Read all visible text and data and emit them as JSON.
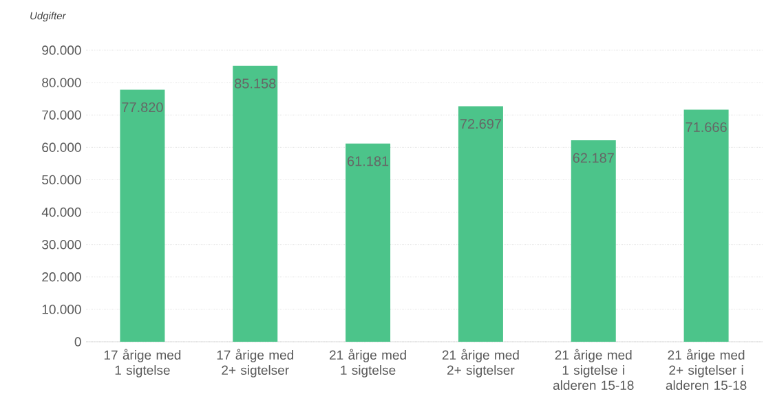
{
  "chart_data": {
    "type": "bar",
    "ylabel": "Udgifter",
    "categories": [
      "17 årige med 1 sigtelse",
      "17 årige med 2+ sigtelser",
      "21 årige med 1 sigtelse",
      "21 årige med 2+ sigtelser",
      "21 årige med 1 sigtelse i alderen 15-18",
      "21 årige med 2+ sigtelser i alderen 15-18"
    ],
    "values": [
      77820,
      85158,
      61181,
      72697,
      62187,
      71666
    ],
    "value_labels": [
      "77.820",
      "85.158",
      "61.181",
      "72.697",
      "62.187",
      "71.666"
    ],
    "color": "#4cc48a",
    "ylim": [
      0,
      90000
    ],
    "yticks": [
      {
        "value": 0,
        "label": "0"
      },
      {
        "value": 10000,
        "label": "10.000"
      },
      {
        "value": 20000,
        "label": "20.000"
      },
      {
        "value": 30000,
        "label": "30.000"
      },
      {
        "value": 40000,
        "label": "40.000"
      },
      {
        "value": 50000,
        "label": "50.000"
      },
      {
        "value": 60000,
        "label": "60.000"
      },
      {
        "value": 70000,
        "label": "70.000"
      },
      {
        "value": 80000,
        "label": "80.000"
      },
      {
        "value": 90000,
        "label": "90.000"
      }
    ],
    "grid": "y"
  }
}
